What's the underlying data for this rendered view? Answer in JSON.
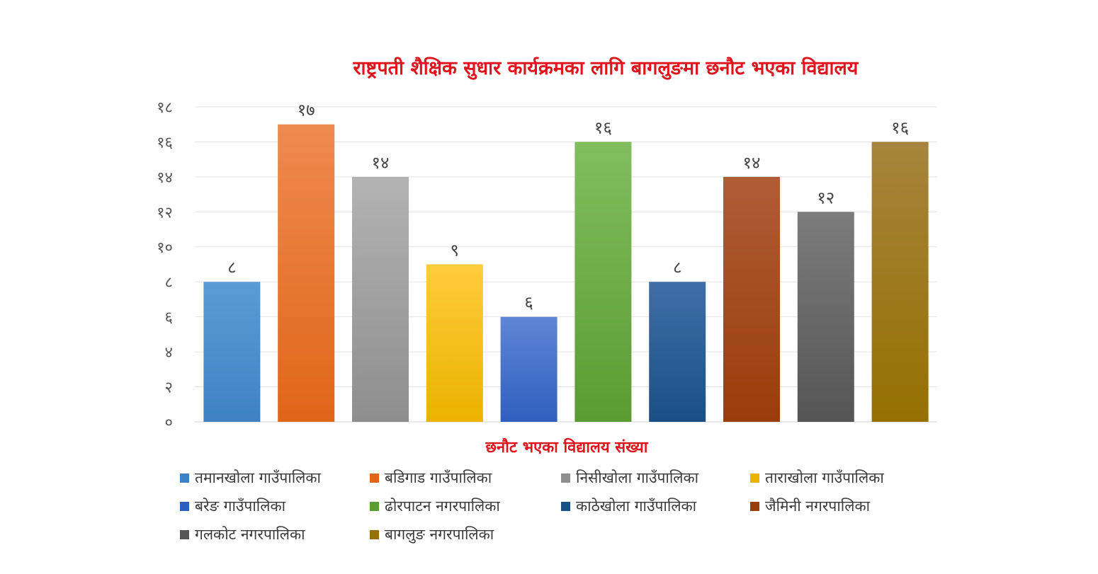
{
  "chart_data": {
    "type": "bar",
    "title": "राष्ट्रपती शैक्षिक सुधार कार्यक्रमका लागि बागलुङमा छनौट भएका विद्यालय",
    "xlabel": "छनौट भएका विद्यालय संख्या",
    "ylabel": "",
    "ylim": [
      0,
      18
    ],
    "y_ticks": [
      "०",
      "२",
      "४",
      "६",
      "८",
      "१०",
      "१२",
      "१४",
      "१६",
      "१८"
    ],
    "grid": true,
    "legend_position": "bottom",
    "series": [
      {
        "name": "तमानखोला गाउँपालिका",
        "value": 8,
        "label": "८",
        "color": "#5b9bd5",
        "color_dark": "#3f82c4"
      },
      {
        "name": "बडिगाड गाउँपालिका",
        "value": 17,
        "label": "१७",
        "color": "#ef8a4f",
        "color_dark": "#e06618"
      },
      {
        "name": "निसीखोला गाउँपालिका",
        "value": 14,
        "label": "१४",
        "color": "#b3b3b3",
        "color_dark": "#8e8e8e"
      },
      {
        "name": "ताराखोला गाउँपालिका",
        "value": 9,
        "label": "९",
        "color": "#ffcc3c",
        "color_dark": "#ebb200"
      },
      {
        "name": "बरेङ गाउँपालिका",
        "value": 6,
        "label": "६",
        "color": "#5f86d6",
        "color_dark": "#2f5fbe"
      },
      {
        "name": "ढोरपाटन नगरपालिका",
        "value": 16,
        "label": "१६",
        "color": "#82bd5e",
        "color_dark": "#5a9c31"
      },
      {
        "name": "काठेखोला गाउँपालिका",
        "value": 8,
        "label": "८",
        "color": "#3f6fa6",
        "color_dark": "#1a4f85"
      },
      {
        "name": "जैमिनी नगरपालिका",
        "value": 14,
        "label": "१४",
        "color": "#b05c37",
        "color_dark": "#993d0a"
      },
      {
        "name": "गलकोट नगरपालिका",
        "value": 12,
        "label": "१२",
        "color": "#7c7c7c",
        "color_dark": "#555555"
      },
      {
        "name": "बागलुङ नगरपालिका",
        "value": 16,
        "label": "१६",
        "color": "#a6843c",
        "color_dark": "#967000"
      }
    ]
  }
}
